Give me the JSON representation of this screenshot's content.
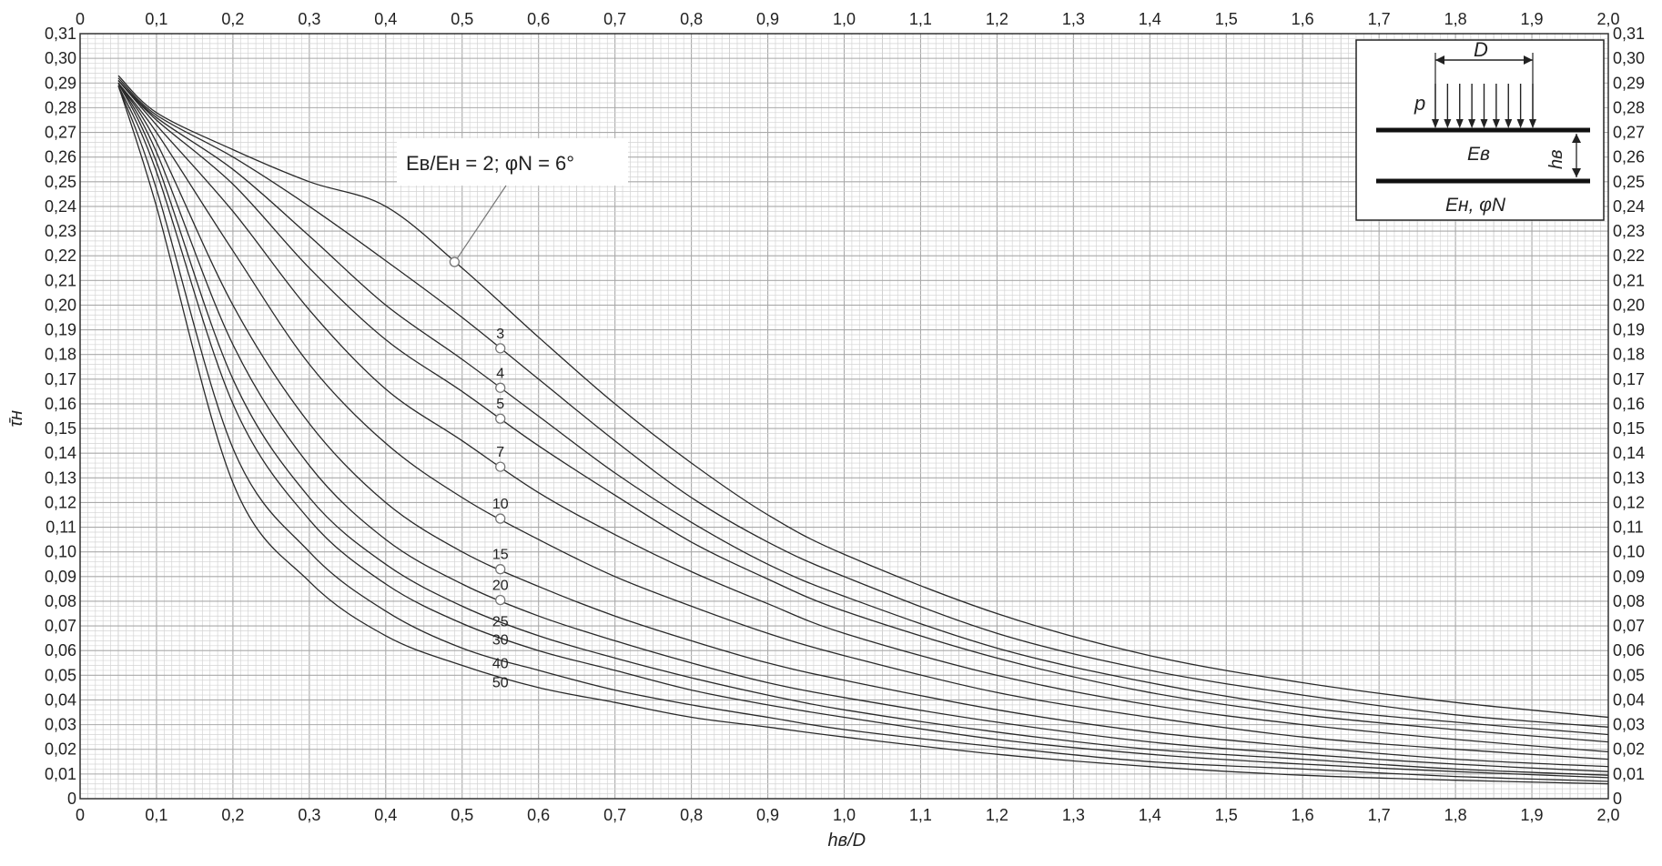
{
  "colors": {
    "background": "#ffffff",
    "grid_minor": "#d4d4d4",
    "grid_major": "#a9a9a9",
    "curve": "#2a2a2a"
  },
  "chart_data": {
    "type": "line",
    "title": "",
    "xlabel": "hв/D",
    "ylabel": "τ̄н",
    "xlim": [
      0,
      2.0
    ],
    "ylim": [
      0,
      0.31
    ],
    "grid": true,
    "x_ticks": [
      "0",
      "0,1",
      "0,2",
      "0,3",
      "0,4",
      "0,5",
      "0,6",
      "0,7",
      "0,8",
      "0,9",
      "1,0",
      "1,1",
      "1,2",
      "1,3",
      "1,4",
      "1,5",
      "1,6",
      "1,7",
      "1,8",
      "1,9",
      "2,0"
    ],
    "y_ticks": [
      "0",
      "0,01",
      "0,02",
      "0,03",
      "0,04",
      "0,05",
      "0,06",
      "0,07",
      "0,08",
      "0,09",
      "0,10",
      "0,11",
      "0,12",
      "0,13",
      "0,14",
      "0,15",
      "0,16",
      "0,17",
      "0,18",
      "0,19",
      "0,20",
      "0,21",
      "0,22",
      "0,23",
      "0,24",
      "0,25",
      "0,26",
      "0,27",
      "0,28",
      "0,29",
      "0,30",
      "0,31"
    ],
    "x": [
      0.05,
      0.1,
      0.2,
      0.3,
      0.4,
      0.5,
      0.6,
      0.7,
      0.8,
      0.9,
      1.0,
      1.2,
      1.4,
      1.6,
      1.8,
      2.0
    ],
    "series": [
      {
        "name": "2",
        "values": [
          0.293,
          0.278,
          0.263,
          0.25,
          0.24,
          0.215,
          0.187,
          0.16,
          0.136,
          0.115,
          0.099,
          0.075,
          0.058,
          0.047,
          0.039,
          0.033
        ]
      },
      {
        "name": "3",
        "values": [
          0.292,
          0.277,
          0.26,
          0.24,
          0.218,
          0.195,
          0.17,
          0.145,
          0.122,
          0.104,
          0.09,
          0.067,
          0.052,
          0.042,
          0.034,
          0.029
        ]
      },
      {
        "name": "4",
        "values": [
          0.291,
          0.276,
          0.255,
          0.228,
          0.2,
          0.178,
          0.155,
          0.132,
          0.112,
          0.095,
          0.082,
          0.061,
          0.047,
          0.037,
          0.031,
          0.026
        ]
      },
      {
        "name": "5",
        "values": [
          0.291,
          0.275,
          0.249,
          0.215,
          0.186,
          0.165,
          0.143,
          0.123,
          0.104,
          0.089,
          0.076,
          0.057,
          0.043,
          0.034,
          0.028,
          0.023
        ]
      },
      {
        "name": "7",
        "values": [
          0.291,
          0.273,
          0.238,
          0.198,
          0.166,
          0.145,
          0.124,
          0.107,
          0.092,
          0.079,
          0.067,
          0.05,
          0.038,
          0.03,
          0.024,
          0.019
        ]
      },
      {
        "name": "10",
        "values": [
          0.29,
          0.27,
          0.222,
          0.176,
          0.144,
          0.122,
          0.105,
          0.09,
          0.078,
          0.067,
          0.058,
          0.043,
          0.033,
          0.025,
          0.02,
          0.016
        ]
      },
      {
        "name": "15",
        "values": [
          0.29,
          0.266,
          0.2,
          0.152,
          0.12,
          0.1,
          0.086,
          0.074,
          0.064,
          0.055,
          0.048,
          0.036,
          0.027,
          0.021,
          0.016,
          0.013
        ]
      },
      {
        "name": "20",
        "values": [
          0.29,
          0.262,
          0.184,
          0.135,
          0.105,
          0.087,
          0.074,
          0.064,
          0.055,
          0.047,
          0.041,
          0.031,
          0.023,
          0.018,
          0.014,
          0.011
        ]
      },
      {
        "name": "25",
        "values": [
          0.29,
          0.258,
          0.17,
          0.122,
          0.095,
          0.078,
          0.066,
          0.057,
          0.049,
          0.042,
          0.036,
          0.027,
          0.02,
          0.016,
          0.012,
          0.0095
        ]
      },
      {
        "name": "30",
        "values": [
          0.289,
          0.254,
          0.16,
          0.113,
          0.087,
          0.071,
          0.06,
          0.052,
          0.044,
          0.038,
          0.033,
          0.024,
          0.018,
          0.014,
          0.011,
          0.0085
        ]
      },
      {
        "name": "40",
        "values": [
          0.289,
          0.247,
          0.142,
          0.1,
          0.076,
          0.061,
          0.052,
          0.044,
          0.038,
          0.033,
          0.028,
          0.021,
          0.015,
          0.012,
          0.009,
          0.007
        ]
      },
      {
        "name": "50",
        "values": [
          0.289,
          0.24,
          0.128,
          0.088,
          0.066,
          0.054,
          0.045,
          0.039,
          0.033,
          0.029,
          0.025,
          0.018,
          0.013,
          0.0095,
          0.0075,
          0.006
        ]
      }
    ],
    "annotations": {
      "ratio_label": "Eв/Eн = 2; φN = 6°",
      "curve_labels": [
        "3",
        "4",
        "5",
        "7",
        "10",
        "15",
        "20",
        "25",
        "30",
        "40",
        "50"
      ]
    }
  },
  "inset": {
    "label_D": "D",
    "label_p": "p",
    "label_Ev": "Eв",
    "label_hv": "hв",
    "label_En_phi": "Eн, φN"
  }
}
